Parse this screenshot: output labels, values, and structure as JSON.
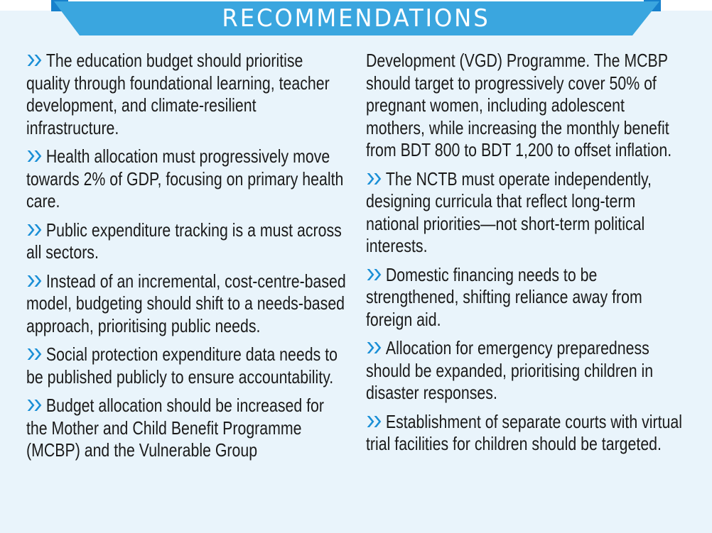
{
  "header": {
    "title": "RECOMMENDATIONS"
  },
  "colors": {
    "banner": "#3aa6df",
    "banner_dark": "#1781cc",
    "background": "#e9f4fb",
    "bullet": "#1a8fd6"
  },
  "bullet_icon": "double-chevron-right-icon",
  "left_items": [
    {
      "text": "The education budget should prioritise quality through foundational learning, teacher development, and climate-resilient infrastructure."
    },
    {
      "text": "Health allocation must progressively move towards 2% of GDP, focusing on primary health care."
    },
    {
      "text": "Public expenditure tracking is a must across all sectors."
    },
    {
      "text": "Instead of an incremental, cost-centre-based model, budgeting should shift to a needs-based approach, prioritising public needs."
    },
    {
      "text": "Social protection expenditure data needs to be published publicly to ensure accountability."
    },
    {
      "text": "Budget allocation should be increased for the Mother and Child Benefit Programme (MCBP) and the Vulnerable Group"
    }
  ],
  "right_continuation": "Development (VGD) Programme. The MCBP should target to progressively cover 50% of pregnant women, including adolescent mothers, while increasing the monthly benefit from BDT 800 to BDT 1,200 to offset inflation.",
  "right_items": [
    {
      "text": "The NCTB must operate independently, designing curricula that reflect long-term national priorities—not short-term political interests."
    },
    {
      "text": "Domestic financing needs to be strengthened, shifting reliance away from foreign aid."
    },
    {
      "text": "Allocation for emergency preparedness should be expanded, prioritising children in disaster responses."
    },
    {
      "text": "Establishment of separate courts with virtual trial facilities for children should be targeted."
    }
  ]
}
